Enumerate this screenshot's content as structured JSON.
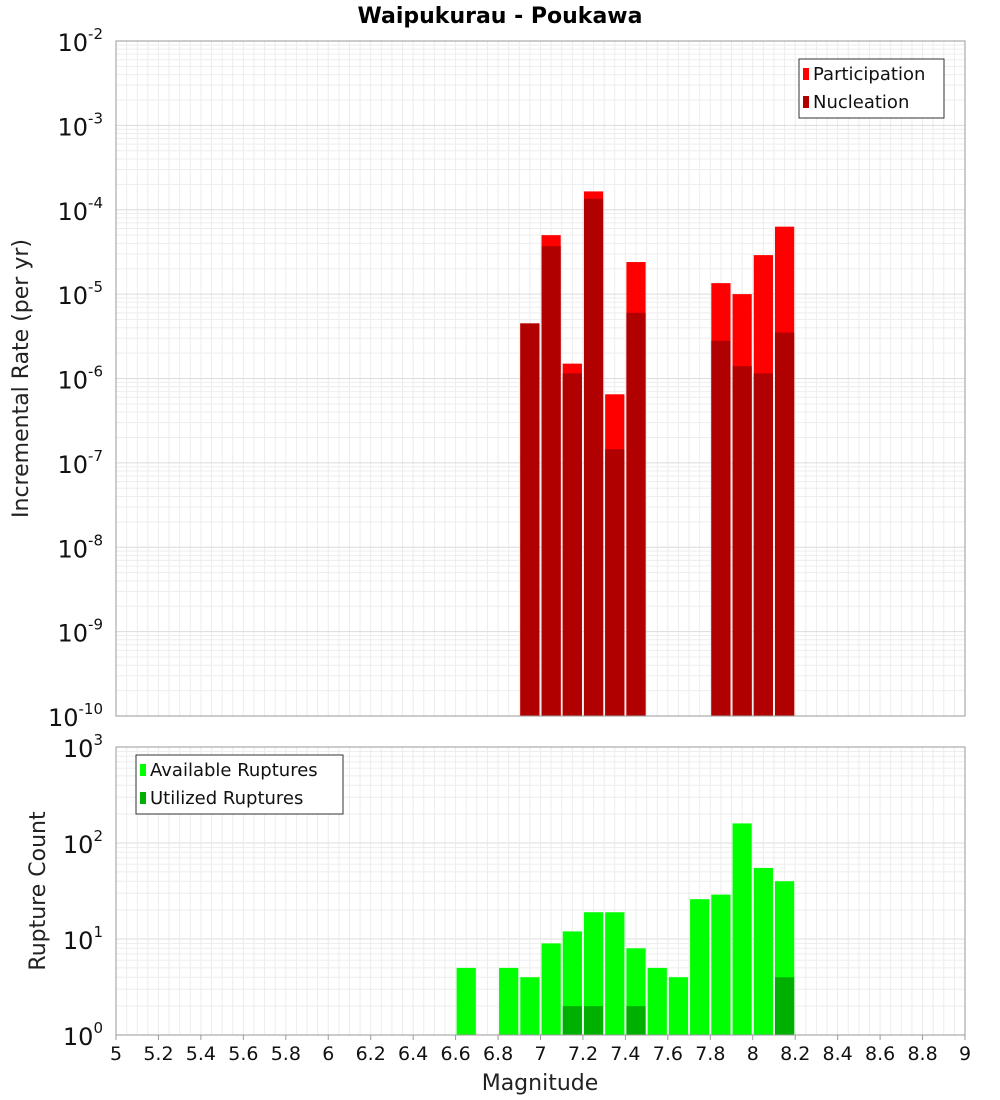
{
  "chart_data": [
    {
      "type": "bar",
      "title": "Waipukurau - Poukawa",
      "xlabel": "Magnitude",
      "ylabel": "Incremental Rate (per yr)",
      "yscale": "log",
      "ylim_exp": [
        -10,
        -2
      ],
      "xlim": [
        5,
        9
      ],
      "bin_width": 0.1,
      "legend_position": "top-right",
      "series": [
        {
          "name": "Participation",
          "color": "#ff0000",
          "points": [
            {
              "x": 6.95,
              "y": 4.5e-06
            },
            {
              "x": 7.05,
              "y": 5e-05
            },
            {
              "x": 7.15,
              "y": 1.5e-06
            },
            {
              "x": 7.25,
              "y": 0.000165
            },
            {
              "x": 7.35,
              "y": 6.5e-07
            },
            {
              "x": 7.45,
              "y": 2.4e-05
            },
            {
              "x": 7.85,
              "y": 1.35e-05
            },
            {
              "x": 7.95,
              "y": 1e-05
            },
            {
              "x": 8.05,
              "y": 2.9e-05
            },
            {
              "x": 8.15,
              "y": 6.3e-05
            }
          ]
        },
        {
          "name": "Nucleation",
          "color": "#b00000",
          "points": [
            {
              "x": 6.95,
              "y": 4.5e-06
            },
            {
              "x": 7.05,
              "y": 3.7e-05
            },
            {
              "x": 7.15,
              "y": 1.15e-06
            },
            {
              "x": 7.25,
              "y": 0.000135
            },
            {
              "x": 7.35,
              "y": 1.45e-07
            },
            {
              "x": 7.45,
              "y": 6e-06
            },
            {
              "x": 7.85,
              "y": 2.8e-06
            },
            {
              "x": 7.95,
              "y": 1.4e-06
            },
            {
              "x": 8.05,
              "y": 1.15e-06
            },
            {
              "x": 8.15,
              "y": 3.5e-06
            }
          ]
        }
      ]
    },
    {
      "type": "bar",
      "title": "",
      "xlabel": "Magnitude",
      "ylabel": "Rupture Count",
      "yscale": "log",
      "ylim_exp": [
        0,
        3
      ],
      "xlim": [
        5,
        9
      ],
      "bin_width": 0.1,
      "legend_position": "top-left",
      "series": [
        {
          "name": "Available Ruptures",
          "color": "#00ff00",
          "points": [
            {
              "x": 6.65,
              "y": 5
            },
            {
              "x": 6.85,
              "y": 5
            },
            {
              "x": 6.95,
              "y": 4
            },
            {
              "x": 7.05,
              "y": 9
            },
            {
              "x": 7.15,
              "y": 12
            },
            {
              "x": 7.25,
              "y": 19
            },
            {
              "x": 7.35,
              "y": 19
            },
            {
              "x": 7.45,
              "y": 8
            },
            {
              "x": 7.55,
              "y": 5
            },
            {
              "x": 7.65,
              "y": 4
            },
            {
              "x": 7.75,
              "y": 26
            },
            {
              "x": 7.85,
              "y": 29
            },
            {
              "x": 7.95,
              "y": 160
            },
            {
              "x": 8.05,
              "y": 55
            },
            {
              "x": 8.15,
              "y": 40
            }
          ]
        },
        {
          "name": "Utilized Ruptures",
          "color": "#00b000",
          "points": [
            {
              "x": 6.95,
              "y": 1
            },
            {
              "x": 7.05,
              "y": 1
            },
            {
              "x": 7.15,
              "y": 2
            },
            {
              "x": 7.25,
              "y": 2
            },
            {
              "x": 7.35,
              "y": 1
            },
            {
              "x": 7.45,
              "y": 2
            },
            {
              "x": 7.85,
              "y": 1
            },
            {
              "x": 7.95,
              "y": 1
            },
            {
              "x": 8.05,
              "y": 1
            },
            {
              "x": 8.15,
              "y": 4
            }
          ]
        }
      ]
    }
  ],
  "x_ticks": [
    "5",
    "5.2",
    "5.4",
    "5.6",
    "5.8",
    "6",
    "6.2",
    "6.4",
    "6.6",
    "6.8",
    "7",
    "7.2",
    "7.4",
    "7.6",
    "7.8",
    "8",
    "8.2",
    "8.4",
    "8.6",
    "8.8",
    "9"
  ]
}
